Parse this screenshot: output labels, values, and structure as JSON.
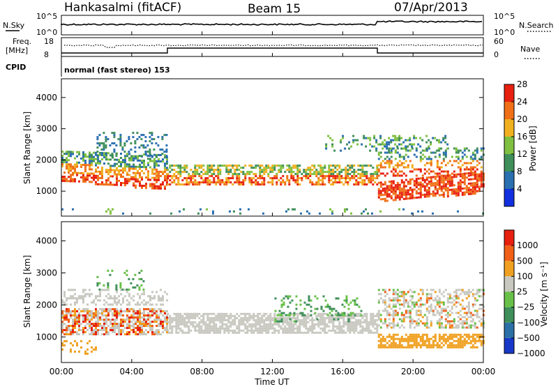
{
  "header": {
    "station": "Hankasalmi (fitACF)",
    "beam": "Beam 15",
    "date": "07/Apr/2013"
  },
  "strips": {
    "nsky_label": "N.Sky",
    "nsearch_label": "N.Search",
    "nsky_ticks": [
      "10^5",
      "10^0"
    ],
    "nsearch_ticks": [
      "10^5",
      "10^0"
    ],
    "freq_label_1": "Freq.",
    "freq_label_2": "[MHz]",
    "freq_ticks": [
      "18",
      "8"
    ],
    "nave_label": "Nave",
    "nave_ticks": [
      "60",
      "0"
    ],
    "cpid_label": "CPID",
    "cpid_text": "normal (fast stereo) 153"
  },
  "chart_data": [
    {
      "type": "heatmap",
      "panel": "power",
      "ylabel": "Slant Range [km]",
      "yticks": [
        "1000",
        "2000",
        "3000",
        "4000"
      ],
      "ylim": [
        200,
        4600
      ],
      "colorbar_label": "Power [dB]",
      "colorbar_ticks": [
        "4",
        "8",
        "12",
        "16",
        "20",
        "24",
        "28"
      ],
      "colors": [
        "#1230e0",
        "#2a6fb0",
        "#3f8f5a",
        "#7fc040",
        "#f0b020",
        "#f07018",
        "#e82010"
      ],
      "grid": false
    },
    {
      "type": "heatmap",
      "panel": "velocity",
      "ylabel": "Slant Range [km]",
      "yticks": [
        "1000",
        "2000",
        "3000",
        "4000"
      ],
      "ylim": [
        200,
        4600
      ],
      "colorbar_label": "Velocity [m s⁻¹]",
      "colorbar_ticks": [
        "1000",
        "500",
        "100",
        "25",
        "−25",
        "−100",
        "−500",
        "−1000"
      ],
      "colors": [
        "#1838c8",
        "#2c70a8",
        "#3f8f5a",
        "#68c048",
        "#c8c8c0",
        "#f0a020",
        "#f06018",
        "#e82010"
      ],
      "grid": false
    }
  ],
  "xaxis": {
    "label": "Time UT",
    "ticks": [
      "00:00",
      "04:00",
      "08:00",
      "12:00",
      "16:00",
      "20:00",
      "00:00"
    ]
  }
}
